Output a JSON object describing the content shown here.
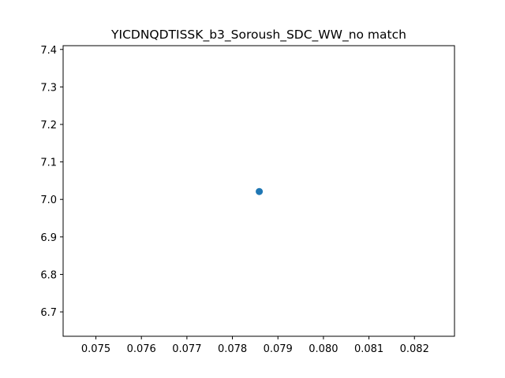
{
  "chart_data": {
    "type": "scatter",
    "title": "YICDNQDTISSK_b3_Soroush_SDC_WW_no match",
    "xlabel": "",
    "ylabel": "",
    "xlim": [
      0.07428,
      0.08288
    ],
    "ylim": [
      6.635,
      7.41
    ],
    "xticks": [
      "0.075",
      "0.076",
      "0.077",
      "0.078",
      "0.079",
      "0.080",
      "0.081",
      "0.082"
    ],
    "yticks": [
      "6.7",
      "6.8",
      "6.9",
      "7.0",
      "7.1",
      "7.2",
      "7.3",
      "7.4"
    ],
    "series": [
      {
        "x": [
          0.07859
        ],
        "y": [
          7.021
        ]
      }
    ],
    "grid": false,
    "point_color": "#1f77b4"
  }
}
